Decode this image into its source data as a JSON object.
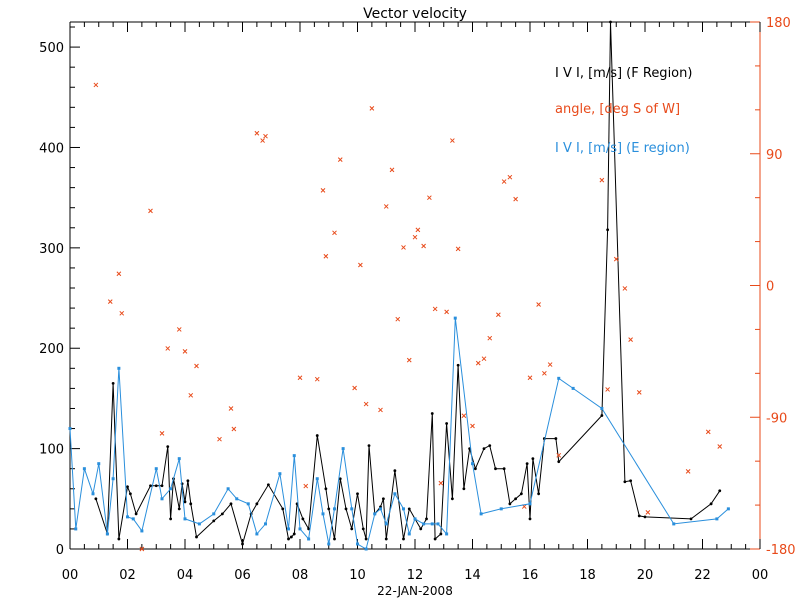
{
  "chart_data": {
    "type": "line",
    "title": "Vector velocity",
    "xlabel": "22-JAN-2008",
    "xlim": [
      0,
      24
    ],
    "x_ticks": [
      "00",
      "02",
      "04",
      "06",
      "08",
      "10",
      "12",
      "14",
      "16",
      "18",
      "20",
      "22",
      "00"
    ],
    "ylim_left": [
      0,
      525
    ],
    "y_ticks_left": [
      "0",
      "100",
      "200",
      "300",
      "400",
      "500"
    ],
    "ylim_right": [
      -180,
      180
    ],
    "y_ticks_right": [
      "-180",
      "-90",
      "0",
      "90",
      "180"
    ],
    "legend_placement": "top-right",
    "colors": {
      "f_region": "#000000",
      "angle": "#e84a1a",
      "e_region": "#2a8fdc",
      "right_axis": "#e84a1a"
    },
    "series": [
      {
        "name": "I V I, [m/s] (F Region)",
        "kind": "line-markers",
        "axis": "left",
        "x": [
          0.9,
          1.3,
          1.5,
          1.7,
          2.0,
          2.1,
          2.3,
          2.8,
          3.0,
          3.2,
          3.4,
          3.5,
          3.6,
          3.8,
          3.9,
          4.0,
          4.1,
          4.2,
          4.4,
          5.0,
          5.3,
          5.6,
          6.0,
          6.3,
          6.5,
          6.9,
          7.4,
          7.6,
          7.7,
          7.8,
          7.9,
          8.1,
          8.3,
          8.6,
          8.9,
          9.0,
          9.2,
          9.4,
          9.6,
          9.8,
          10.0,
          10.2,
          10.3,
          10.4,
          10.6,
          10.8,
          10.9,
          11.0,
          11.3,
          11.6,
          11.8,
          12.0,
          12.2,
          12.4,
          12.6,
          12.7,
          12.9,
          13.1,
          13.3,
          13.5,
          13.7,
          13.9,
          14.1,
          14.4,
          14.6,
          14.8,
          15.1,
          15.3,
          15.5,
          15.7,
          15.9,
          16.0,
          16.1,
          16.3,
          16.5,
          16.9,
          17.0,
          18.5,
          18.7,
          18.8,
          19.3,
          19.5,
          19.8,
          20.0,
          21.6,
          22.3,
          22.6
        ],
        "values": [
          50,
          15,
          165,
          10,
          62,
          55,
          35,
          63,
          63,
          63,
          102,
          30,
          70,
          40,
          65,
          47,
          68,
          45,
          12,
          28,
          35,
          45,
          5,
          35,
          45,
          64,
          40,
          10,
          12,
          15,
          45,
          30,
          20,
          113,
          60,
          40,
          10,
          70,
          40,
          20,
          55,
          20,
          10,
          103,
          35,
          42,
          50,
          10,
          78,
          10,
          40,
          30,
          20,
          30,
          135,
          10,
          15,
          125,
          50,
          183,
          60,
          100,
          80,
          100,
          103,
          80,
          80,
          45,
          50,
          55,
          85,
          30,
          90,
          55,
          110,
          110,
          87,
          133,
          318,
          525,
          67,
          68,
          33,
          32,
          30,
          45,
          58
        ]
      },
      {
        "name": "angle, [deg S of W]",
        "kind": "scatter",
        "axis": "right",
        "x": [
          0.9,
          1.4,
          1.7,
          1.8,
          2.5,
          2.8,
          3.2,
          3.4,
          3.8,
          4.0,
          4.2,
          4.4,
          5.2,
          5.6,
          5.7,
          6.5,
          6.7,
          6.8,
          8.0,
          8.2,
          8.6,
          8.8,
          8.9,
          9.2,
          9.4,
          9.9,
          10.1,
          10.3,
          10.5,
          10.8,
          11.0,
          11.2,
          11.4,
          11.6,
          11.8,
          12.0,
          12.1,
          12.3,
          12.5,
          12.7,
          12.9,
          13.1,
          13.3,
          13.5,
          13.7,
          14.0,
          14.2,
          14.4,
          14.6,
          14.9,
          15.1,
          15.3,
          15.5,
          15.8,
          16.0,
          16.3,
          16.5,
          16.7,
          17.0,
          18.5,
          18.7,
          19.0,
          19.3,
          19.5,
          19.8,
          20.1,
          21.5,
          22.2,
          22.6
        ],
        "values": [
          137,
          -11,
          8,
          -19,
          -180,
          51,
          -101,
          -43,
          -30,
          -45,
          -75,
          -55,
          -105,
          -84,
          -98,
          104,
          99,
          102,
          -63,
          -137,
          -64,
          65,
          20,
          36,
          86,
          -70,
          14,
          -81,
          121,
          -85,
          54,
          79,
          -23,
          26,
          -51,
          33,
          38,
          27,
          60,
          -16,
          -135,
          -18,
          99,
          25,
          -89,
          -96,
          -53,
          -50,
          -36,
          -20,
          71,
          74,
          59,
          -151,
          -63,
          -13,
          -60,
          -54,
          -116,
          72,
          -71,
          18,
          -2,
          -37,
          -73,
          -155,
          -127,
          -100,
          -110
        ]
      },
      {
        "name": "I V I, [m/s] (E region)",
        "kind": "line-markers",
        "axis": "left",
        "x": [
          0.0,
          0.2,
          0.5,
          0.8,
          1.0,
          1.3,
          1.5,
          1.7,
          2.0,
          2.2,
          2.5,
          3.0,
          3.2,
          3.5,
          3.8,
          4.0,
          4.5,
          5.0,
          5.5,
          5.8,
          6.2,
          6.5,
          6.8,
          7.3,
          7.6,
          7.8,
          8.0,
          8.3,
          8.6,
          8.8,
          9.0,
          9.2,
          9.5,
          9.8,
          10.0,
          10.3,
          10.6,
          10.8,
          11.0,
          11.3,
          11.6,
          11.8,
          12.0,
          12.3,
          12.6,
          12.8,
          13.1,
          13.4,
          14.0,
          14.3,
          15.0,
          16.0,
          17.0,
          17.5,
          18.5,
          21.0,
          22.5,
          22.9
        ],
        "values": [
          120,
          20,
          80,
          55,
          85,
          15,
          70,
          180,
          32,
          30,
          18,
          80,
          50,
          60,
          90,
          30,
          25,
          35,
          60,
          50,
          45,
          15,
          25,
          75,
          20,
          93,
          20,
          10,
          70,
          35,
          5,
          40,
          100,
          40,
          5,
          0,
          35,
          40,
          25,
          55,
          40,
          15,
          30,
          25,
          25,
          25,
          15,
          230,
          85,
          35,
          40,
          45,
          170,
          160,
          140,
          25,
          30,
          40
        ]
      }
    ]
  }
}
